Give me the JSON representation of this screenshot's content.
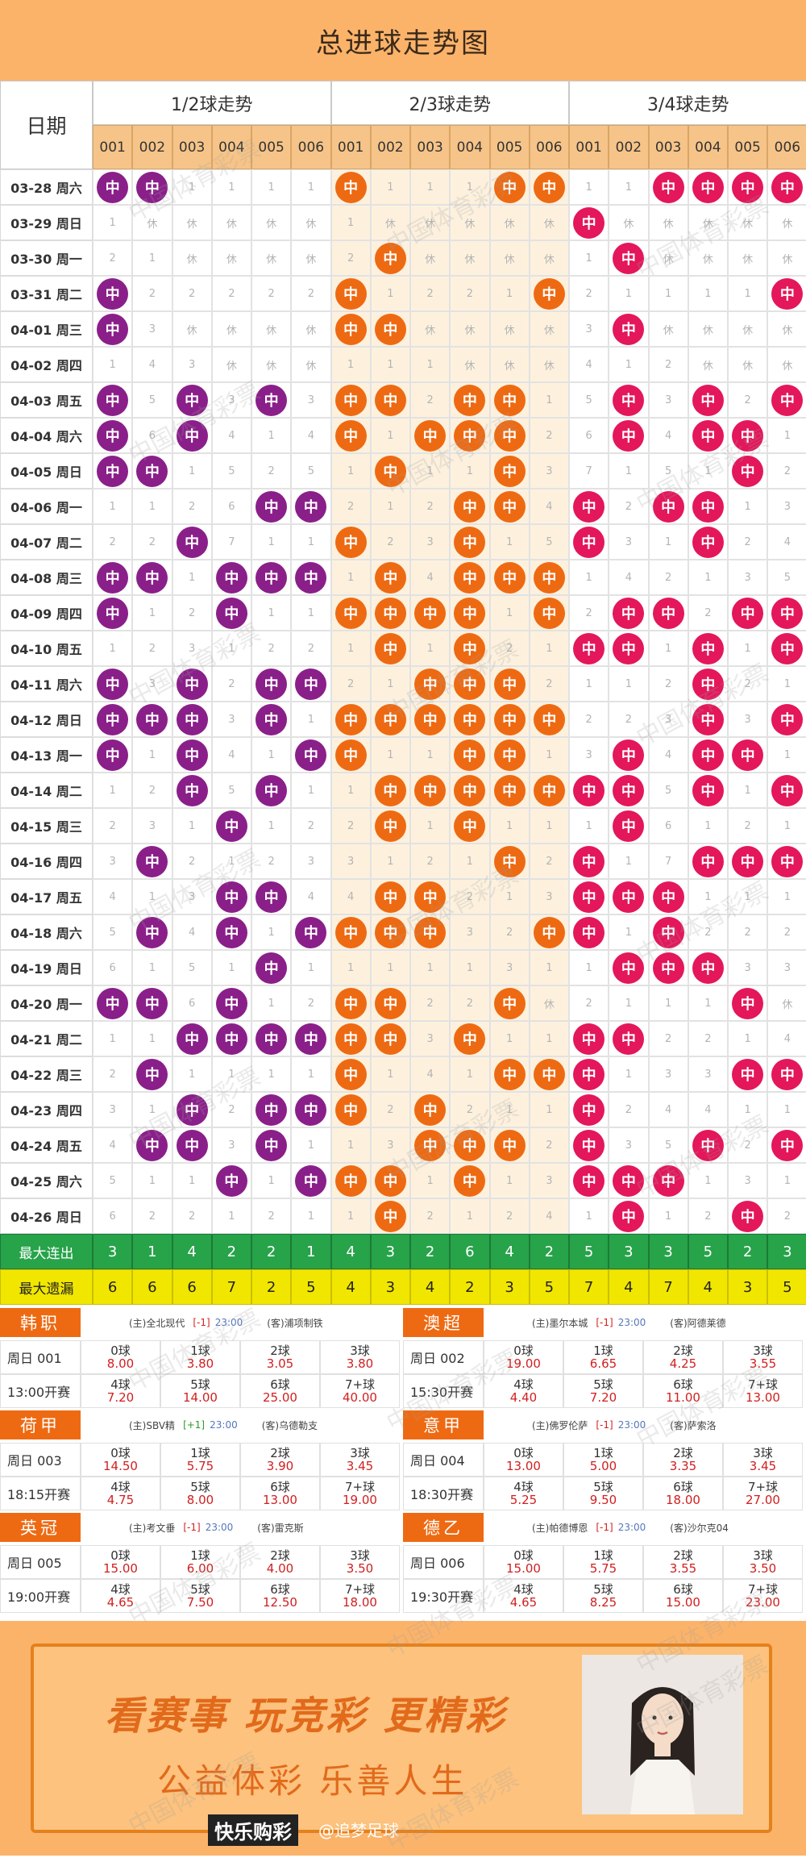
{
  "page": {
    "title": "总进球走势图"
  },
  "header": {
    "date_label": "日期",
    "groups": [
      "1/2球走势",
      "2/3球走势",
      "3/4球走势"
    ],
    "numbers": [
      "001",
      "002",
      "003",
      "004",
      "005",
      "006"
    ]
  },
  "colors": {
    "group1": "#8a1f8a",
    "group2": "#ee6a12",
    "group3": "#e3175a",
    "highlight_band": "#fdf1de"
  },
  "ball_label": "中",
  "dates": [
    "03-28 周六",
    "03-29 周日",
    "03-30 周一",
    "03-31 周二",
    "04-01 周三",
    "04-02 周四",
    "04-03 周五",
    "04-04 周六",
    "04-05 周日",
    "04-06 周一",
    "04-07 周二",
    "04-08 周三",
    "04-09 周四",
    "04-10 周五",
    "04-11 周六",
    "04-12 周日",
    "04-13 周一",
    "04-14 周二",
    "04-15 周三",
    "04-16 周四",
    "04-17 周五",
    "04-18 周六",
    "04-19 周日",
    "04-20 周一",
    "04-21 周二",
    "04-22 周三",
    "04-23 周四",
    "04-24 周五",
    "04-25 周六",
    "04-26 周日"
  ],
  "grid": [
    [
      "中 中 1 1 1 1",
      "中 1 1 1 中 中",
      "1 1 中 中 中 中"
    ],
    [
      "1 休 休 休 休 休",
      "1 休 休 休 休 休",
      "中 休 休 休 休 休"
    ],
    [
      "2 1 休 休 休 休",
      "2 中 休 休 休 休",
      "1 中 休 休 休 休"
    ],
    [
      "中 2 2 2 2 2",
      "中 1 2 2 1 中",
      "2 1 1 1 1 中"
    ],
    [
      "中 3 休 休 休 休",
      "中 中 休 休 休 休",
      "3 中 休 休 休 休"
    ],
    [
      "1 4 3 休 休 休",
      "1 1 1 休 休 休",
      "4 1 2 休 休 休"
    ],
    [
      "中 5 中 3 中 3",
      "中 中 2 中 中 1",
      "5 中 3 中 2 中"
    ],
    [
      "中 6 中 4 1 4",
      "中 1 中 中 中 2",
      "6 中 4 中 中 1"
    ],
    [
      "中 中 1 5 2 5",
      "1 中 1 1 中 3",
      "7 1 5 1 中 2"
    ],
    [
      "1 1 2 6 中 中",
      "2 1 2 中 中 4",
      "中 2 中 中 1 3"
    ],
    [
      "2 2 中 7 1 1",
      "中 2 3 中 1 5",
      "中 3 1 中 2 4"
    ],
    [
      "中 中 1 中 中 中",
      "1 中 4 中 中 中",
      "1 4 2 1 3 5"
    ],
    [
      "中 1 2 中 1 1",
      "中 中 中 中 1 中",
      "2 中 中 2 中 中"
    ],
    [
      "1 2 3 1 2 2",
      "1 中 1 中 2 1",
      "中 中 1 中 1 中"
    ],
    [
      "中 3 中 2 中 中",
      "2 1 中 中 中 2",
      "1 1 2 中 2 1"
    ],
    [
      "中 中 中 3 中 1",
      "中 中 中 中 中 中",
      "2 2 3 中 3 中"
    ],
    [
      "中 1 中 4 1 中",
      "中 1 1 中 中 1",
      "3 中 4 中 中 1"
    ],
    [
      "1 2 中 5 中 1",
      "1 中 中 中 中 中",
      "中 中 5 中 1 中"
    ],
    [
      "2 3 1 中 1 2",
      "2 中 1 中 1 1",
      "1 中 6 1 2 1"
    ],
    [
      "3 中 2 1 2 3",
      "3 1 2 1 中 2",
      "中 1 7 中 中 中"
    ],
    [
      "4 1 3 中 中 4",
      "4 中 中 2 1 3",
      "中 中 中 1 1 1"
    ],
    [
      "5 中 4 中 1 中",
      "中 中 中 3 2 中",
      "中 1 中 2 2 2"
    ],
    [
      "6 1 5 1 中 1",
      "1 1 1 1 3 1",
      "1 中 中 中 3 3"
    ],
    [
      "中 中 6 中 1 2",
      "中 中 2 2 中 休",
      "2 1 1 1 中 休"
    ],
    [
      "1 1 中 中 中 中",
      "中 中 3 中 1 1",
      "中 中 2 2 1 4"
    ],
    [
      "2 中 1 1 1 1",
      "中 1 4 1 中 中",
      "中 1 3 3 中 中"
    ],
    [
      "3 1 中 2 中 中",
      "中 2 中 2 1 1",
      "中 2 4 4 1 1"
    ],
    [
      "4 中 中 3 中 1",
      "1 3 中 中 中 2",
      "中 3 5 中 2 中"
    ],
    [
      "5 1 1 中 1 中",
      "中 中 1 中 1 3",
      "中 中 中 1 3 1"
    ],
    [
      "6 2 2 1 2 1",
      "1 中 2 1 2 4",
      "1 中 1 2 中 2"
    ]
  ],
  "summary": {
    "streak_label": "最大连出",
    "streak": [
      "3",
      "1",
      "4",
      "2",
      "2",
      "1",
      "4",
      "3",
      "2",
      "6",
      "4",
      "2",
      "5",
      "3",
      "3",
      "5",
      "2",
      "3"
    ],
    "miss_label": "最大遗漏",
    "miss": [
      "6",
      "6",
      "6",
      "7",
      "2",
      "5",
      "4",
      "3",
      "4",
      "2",
      "3",
      "5",
      "7",
      "4",
      "7",
      "4",
      "3",
      "5"
    ]
  },
  "matches": [
    {
      "league": "韩职",
      "home": "(主)全北现代",
      "hc": "[-1]",
      "hc_type": "minus",
      "time": "23:00",
      "away": "(客)浦项制铁",
      "code": "周日 001",
      "kickoff": "13:00开赛",
      "goals": [
        "0球",
        "1球",
        "2球",
        "3球",
        "4球",
        "5球",
        "6球",
        "7+球"
      ],
      "odds": [
        "8.00",
        "3.80",
        "3.05",
        "3.80",
        "7.20",
        "14.00",
        "25.00",
        "40.00"
      ]
    },
    {
      "league": "澳超",
      "home": "(主)墨尔本城",
      "hc": "[-1]",
      "hc_type": "minus",
      "time": "23:00",
      "away": "(客)阿德莱德",
      "code": "周日 002",
      "kickoff": "15:30开赛",
      "goals": [
        "0球",
        "1球",
        "2球",
        "3球",
        "4球",
        "5球",
        "6球",
        "7+球"
      ],
      "odds": [
        "19.00",
        "6.65",
        "4.25",
        "3.55",
        "4.40",
        "7.20",
        "11.00",
        "13.00"
      ]
    },
    {
      "league": "荷甲",
      "home": "(主)SBV精",
      "hc": "[+1]",
      "hc_type": "plus",
      "time": "23:00",
      "away": "(客)乌德勒支",
      "code": "周日 003",
      "kickoff": "18:15开赛",
      "goals": [
        "0球",
        "1球",
        "2球",
        "3球",
        "4球",
        "5球",
        "6球",
        "7+球"
      ],
      "odds": [
        "14.50",
        "5.75",
        "3.90",
        "3.45",
        "4.75",
        "8.00",
        "13.00",
        "19.00"
      ]
    },
    {
      "league": "意甲",
      "home": "(主)佛罗伦萨",
      "hc": "[-1]",
      "hc_type": "minus",
      "time": "23:00",
      "away": "(客)萨索洛",
      "code": "周日 004",
      "kickoff": "18:30开赛",
      "goals": [
        "0球",
        "1球",
        "2球",
        "3球",
        "4球",
        "5球",
        "6球",
        "7+球"
      ],
      "odds": [
        "13.00",
        "5.00",
        "3.35",
        "3.45",
        "5.25",
        "9.50",
        "18.00",
        "27.00"
      ]
    },
    {
      "league": "英冠",
      "home": "(主)考文垂",
      "hc": "[-1]",
      "hc_type": "minus",
      "time": "23:00",
      "away": "(客)雷克斯",
      "code": "周日 005",
      "kickoff": "19:00开赛",
      "goals": [
        "0球",
        "1球",
        "2球",
        "3球",
        "4球",
        "5球",
        "6球",
        "7+球"
      ],
      "odds": [
        "15.00",
        "6.00",
        "4.00",
        "3.50",
        "4.65",
        "7.50",
        "12.50",
        "18.00"
      ]
    },
    {
      "league": "德乙",
      "home": "(主)帕德博恩",
      "hc": "[-1]",
      "hc_type": "minus",
      "time": "23:00",
      "away": "(客)沙尔克04",
      "code": "周日 006",
      "kickoff": "19:30开赛",
      "goals": [
        "0球",
        "1球",
        "2球",
        "3球",
        "4球",
        "5球",
        "6球",
        "7+球"
      ],
      "odds": [
        "15.00",
        "5.75",
        "3.55",
        "3.50",
        "4.65",
        "8.25",
        "15.00",
        "23.00"
      ]
    }
  ],
  "banner": {
    "slogan": "看赛事 玩竞彩 更精彩",
    "tagline": "公益体彩 乐善人生",
    "brand": "快乐购彩",
    "handle": "@追梦足球"
  },
  "watermark": "中国体育彩票"
}
